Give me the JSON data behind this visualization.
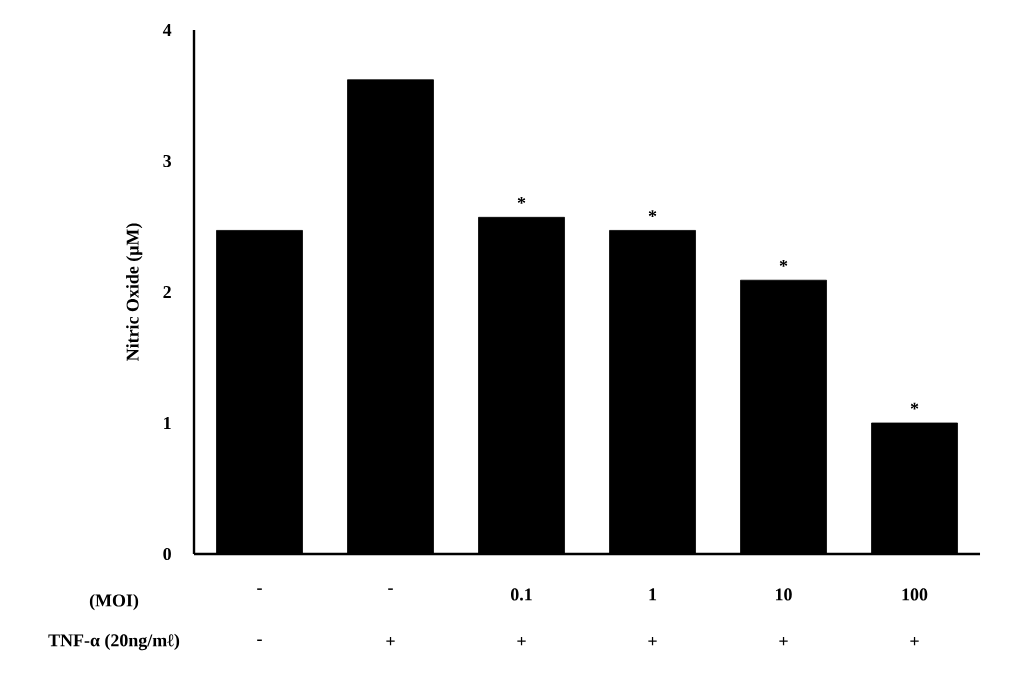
{
  "chart_data": {
    "type": "bar",
    "categories": [
      "-",
      "-",
      "0.1",
      "1",
      "10",
      "100"
    ],
    "values": [
      2.47,
      3.62,
      2.57,
      2.47,
      2.09,
      1.0
    ],
    "color": "#000000",
    "xlabel": "(MOI)",
    "ylabel": "Nitric Oxide (μM)",
    "ylim": [
      0,
      4
    ],
    "yticks": [
      0,
      1,
      2,
      3,
      4
    ],
    "annotations": [
      {
        "text": "*",
        "x": "0.1",
        "y": 2.57
      },
      {
        "text": "*",
        "x": "1",
        "y": 2.47
      },
      {
        "text": "*",
        "x": "10",
        "y": 2.09
      },
      {
        "text": "*",
        "x": "100",
        "y": 1.0
      },
      "TNF-α (20ng/mℓ)",
      "-",
      "+",
      "+",
      "+",
      "+",
      "+"
    ]
  }
}
